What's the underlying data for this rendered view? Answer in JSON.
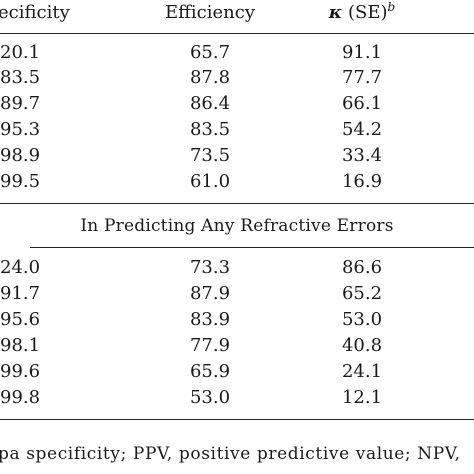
{
  "header": {
    "col_specificity": "ecificity",
    "col_efficiency": "Efficiency",
    "col_kappa_symbol": "κ",
    "col_kappa_rest": " (SE)",
    "col_kappa_sup": "b"
  },
  "section1": {
    "rows": [
      {
        "specificity": "20.1",
        "efficiency": "65.7",
        "kappa": "91.1"
      },
      {
        "specificity": "83.5",
        "efficiency": "87.8",
        "kappa": "77.7"
      },
      {
        "specificity": "89.7",
        "efficiency": "86.4",
        "kappa": "66.1"
      },
      {
        "specificity": "95.3",
        "efficiency": "83.5",
        "kappa": "54.2"
      },
      {
        "specificity": "98.9",
        "efficiency": "73.5",
        "kappa": "33.4"
      },
      {
        "specificity": "99.5",
        "efficiency": "61.0",
        "kappa": "16.9"
      }
    ]
  },
  "section2": {
    "title": "In Predicting Any Refractive Errors",
    "rows": [
      {
        "specificity": "24.0",
        "efficiency": "73.3",
        "kappa": "86.6"
      },
      {
        "specificity": "91.7",
        "efficiency": "87.9",
        "kappa": "65.2"
      },
      {
        "specificity": "95.6",
        "efficiency": "83.9",
        "kappa": "53.0"
      },
      {
        "specificity": "98.1",
        "efficiency": "77.9",
        "kappa": "40.8"
      },
      {
        "specificity": "99.6",
        "efficiency": "65.9",
        "kappa": "24.1"
      },
      {
        "specificity": "99.8",
        "efficiency": "53.0",
        "kappa": "12.1"
      }
    ]
  },
  "footnote": {
    "text": "pa specificity; PPV, positive predictive value; NPV,"
  }
}
